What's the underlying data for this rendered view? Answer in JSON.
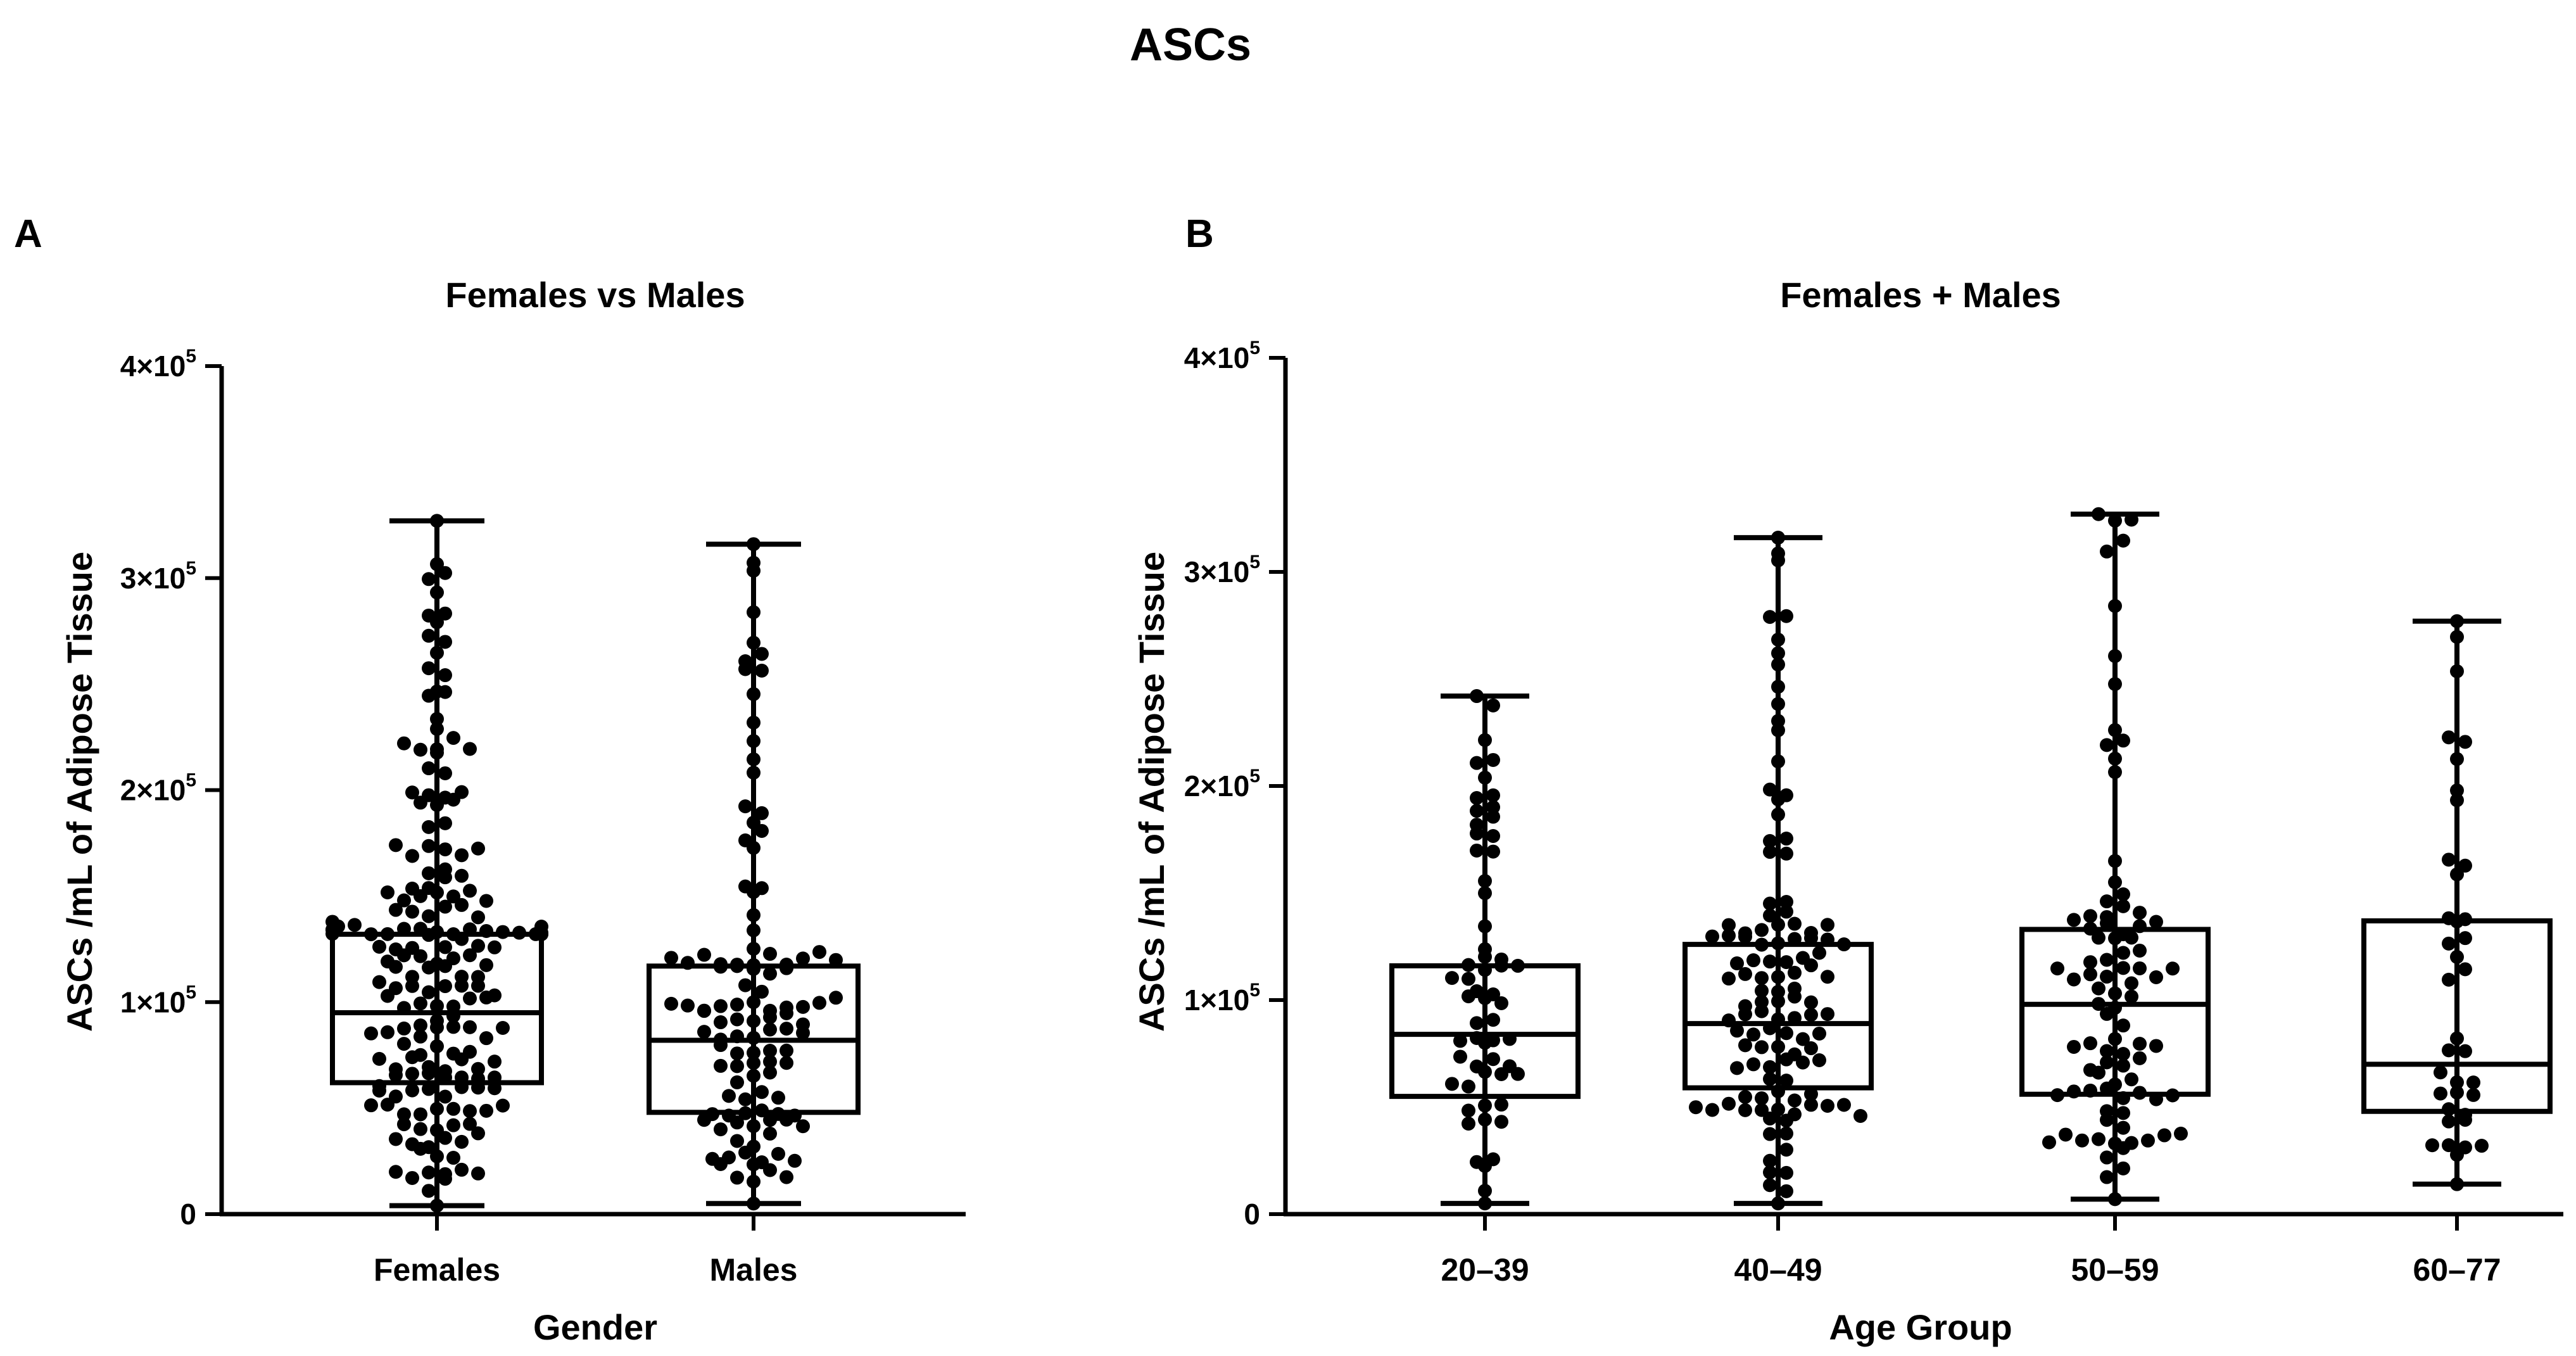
{
  "figure_title": "ASCs",
  "colors": {
    "ink": "#000000",
    "background": "#ffffff",
    "point": "#000000"
  },
  "chart_data": [
    {
      "panel_label": "A",
      "type": "box",
      "title": "Females vs Males",
      "xlabel": "Gender",
      "ylabel": "ASCs /mL of Adipose Tissue",
      "ylim": [
        0,
        400000
      ],
      "yticks": [
        {
          "value": 0,
          "base": "0",
          "exp": ""
        },
        {
          "value": 100000,
          "base": "1×10",
          "exp": "5"
        },
        {
          "value": 200000,
          "base": "2×10",
          "exp": "5"
        },
        {
          "value": 300000,
          "base": "3×10",
          "exp": "5"
        },
        {
          "value": 400000,
          "base": "4×10",
          "exp": "5"
        }
      ],
      "grid": false,
      "point_style": "scatter dot overlay (individual samples)",
      "categories": [
        "Females",
        "Males"
      ],
      "series": [
        {
          "category": "Females",
          "min": 4000,
          "q1": 62000,
          "median": 95000,
          "q3": 132000,
          "max": 327000,
          "points_approx": 190
        },
        {
          "category": "Males",
          "min": 5000,
          "q1": 48000,
          "median": 82000,
          "q3": 117000,
          "max": 316000,
          "points_approx": 115
        }
      ]
    },
    {
      "panel_label": "B",
      "type": "box",
      "title": "Females + Males",
      "xlabel": "Age Group",
      "ylabel": "ASCs /mL of Adipose Tissue",
      "ylim": [
        0,
        400000
      ],
      "yticks": [
        {
          "value": 0,
          "base": "0",
          "exp": ""
        },
        {
          "value": 100000,
          "base": "1×10",
          "exp": "5"
        },
        {
          "value": 200000,
          "base": "2×10",
          "exp": "5"
        },
        {
          "value": 300000,
          "base": "3×10",
          "exp": "5"
        },
        {
          "value": 400000,
          "base": "4×10",
          "exp": "5"
        }
      ],
      "grid": false,
      "point_style": "scatter dot overlay (individual samples)",
      "categories": [
        "20–39",
        "40–49",
        "50–59",
        "60–77"
      ],
      "series": [
        {
          "category": "20–39",
          "min": 5000,
          "q1": 55000,
          "median": 84000,
          "q3": 116000,
          "max": 242000,
          "points_approx": 60
        },
        {
          "category": "40–49",
          "min": 5000,
          "q1": 59000,
          "median": 89000,
          "q3": 126000,
          "max": 316000,
          "points_approx": 115
        },
        {
          "category": "50–59",
          "min": 7000,
          "q1": 56000,
          "median": 98000,
          "q3": 133000,
          "max": 327000,
          "points_approx": 90
        },
        {
          "category": "60–77",
          "min": 14000,
          "q1": 48000,
          "median": 70000,
          "q3": 137000,
          "max": 277000,
          "points_approx": 38
        }
      ]
    }
  ]
}
